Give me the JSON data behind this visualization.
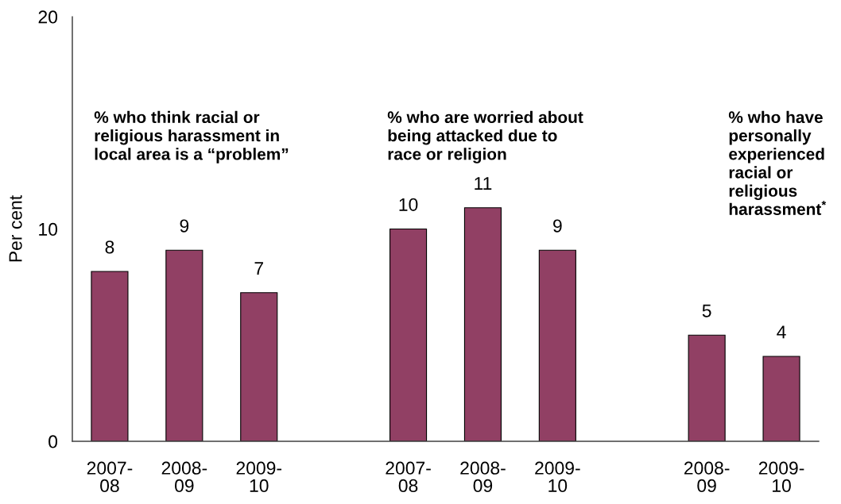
{
  "chart_data": {
    "type": "bar",
    "ylabel": "Per cent",
    "categories": [
      "2007-\n08",
      "2008-\n09",
      "2009-\n10",
      null,
      "2007-\n08",
      "2008-\n09",
      "2009-\n10",
      null,
      "2008-\n09",
      "2009-\n10"
    ],
    "values": [
      8,
      9,
      7,
      null,
      10,
      11,
      9,
      null,
      5,
      4
    ],
    "color": "#914064",
    "ylim": [
      0,
      20
    ],
    "yticks": [
      0,
      10,
      20
    ],
    "data_labels": true,
    "annotations": [
      "% who think racial or\nreligious harassment in\nlocal area is a “problem”",
      "% who are worried about\nbeing attacked due to\nrace or religion",
      "% who have\npersonally\nexperienced\nracial or\nreligious\nharassment$^{*}$"
    ]
  }
}
